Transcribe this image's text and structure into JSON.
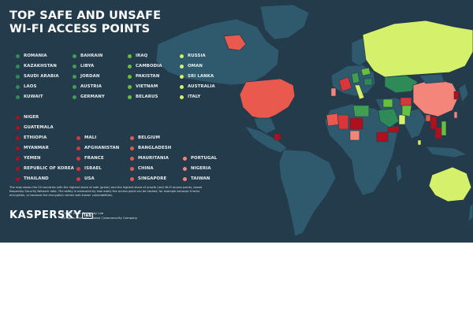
{
  "title": {
    "line1": "TOP SAFE AND UNSAFE",
    "line2": "WI-FI ACCESS POINTS"
  },
  "colors": {
    "background": "#233b4a",
    "ocean_land": "#2f5466",
    "land_default": "#2f5a6e",
    "safe_dark": "#2e8b57",
    "safe_medium": "#57b947",
    "safe_light": "#8fcf3c",
    "safe_pale": "#d5f06b",
    "unsafe_dark": "#b0101e",
    "unsafe_medium": "#e74c3c",
    "unsafe_light": "#f4857a"
  },
  "legend": {
    "safe": [
      {
        "label": "ROMANIA",
        "color": "#2e8b57"
      },
      {
        "label": "KAZAKHSTAN",
        "color": "#2e8b57"
      },
      {
        "label": "SAUDI ARABIA",
        "color": "#2e8b57"
      },
      {
        "label": "LAOS",
        "color": "#2e8b57"
      },
      {
        "label": "KUWAIT",
        "color": "#2e8b57"
      },
      {
        "label": "BAHRAIN",
        "color": "#3f9e52"
      },
      {
        "label": "LIBYA",
        "color": "#3f9e52"
      },
      {
        "label": "JORDAN",
        "color": "#3f9e52"
      },
      {
        "label": "AUSTRIA",
        "color": "#3f9e52"
      },
      {
        "label": "GERMANY",
        "color": "#3f9e52"
      },
      {
        "label": "IRAQ",
        "color": "#67bf3f"
      },
      {
        "label": "CAMBODIA",
        "color": "#67bf3f"
      },
      {
        "label": "PAKISTAN",
        "color": "#67bf3f"
      },
      {
        "label": "VIETNAM",
        "color": "#67bf3f"
      },
      {
        "label": "BELARUS",
        "color": "#67bf3f"
      },
      {
        "label": "RUSSIA",
        "color": "#d5f06b"
      },
      {
        "label": "OMAN",
        "color": "#d5f06b"
      },
      {
        "label": "SRI LANKA",
        "color": "#d5f06b"
      },
      {
        "label": "AUSTRALIA",
        "color": "#d5f06b"
      },
      {
        "label": "ITALY",
        "color": "#d5f06b"
      }
    ],
    "unsafe": [
      {
        "label": "NIGER",
        "color": "#b0101e"
      },
      {
        "label": "GUATEMALA",
        "color": "#b0101e"
      },
      {
        "label": "ETHIOPIA",
        "color": "#b0101e"
      },
      {
        "label": "MYANMAR",
        "color": "#b0101e"
      },
      {
        "label": "YEMEN",
        "color": "#b0101e"
      },
      {
        "label": "REPUBLIC OF KOREA",
        "color": "#b0101e"
      },
      {
        "label": "THAILAND",
        "color": "#b0101e"
      },
      {
        "label": "MALI",
        "color": "#d8363a"
      },
      {
        "label": "AFGHANISTAN",
        "color": "#d8363a"
      },
      {
        "label": "FRANCE",
        "color": "#d8363a"
      },
      {
        "label": "ISRAEL",
        "color": "#d8363a"
      },
      {
        "label": "USA",
        "color": "#d8363a"
      },
      {
        "label": "BELGIUM",
        "color": "#e9594e"
      },
      {
        "label": "BANGLADESH",
        "color": "#e9594e"
      },
      {
        "label": "MAURITANIA",
        "color": "#e9594e"
      },
      {
        "label": "CHINA",
        "color": "#e9594e"
      },
      {
        "label": "SINGAPORE",
        "color": "#e9594e"
      },
      {
        "label": "PORTUGAL",
        "color": "#f4857a"
      },
      {
        "label": "NIGERIA",
        "color": "#f4857a"
      },
      {
        "label": "TAIWAN",
        "color": "#f4857a"
      }
    ]
  },
  "footnote": "The map shows the 20 countries with the highest share of safe (green) and the highest share of unsafe (red) Wi-Fi access points, based Kaspersky Security Network data. The safety is measured by how easily the access point can be hacked, for example because it lacks encryption, or because the encryption carries well-known vulnerabilities.",
  "logo": {
    "text": "KASPERSKY",
    "badge": "lab"
  },
  "copyright": {
    "line1": "©1997-2016 Kaspersky Lab",
    "line2": "All rights reserved. Global Cybersecurity Company"
  }
}
